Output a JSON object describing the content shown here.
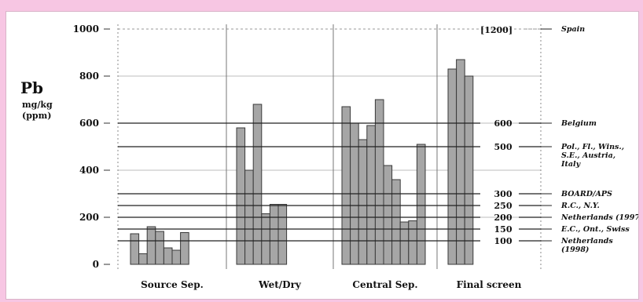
{
  "chart_data": {
    "type": "bar",
    "ylabel": "Pb",
    "yunit_line1": "mg/kg",
    "yunit_line2": "(ppm)",
    "ylim": [
      0,
      1000
    ],
    "yticks": [
      "0",
      "200",
      "400",
      "600",
      "800",
      "1000"
    ],
    "ceiling_note": "[1200]",
    "groups": [
      {
        "name": "Source Sep.",
        "values": [
          130,
          45,
          160,
          140,
          70,
          60,
          135
        ]
      },
      {
        "name": "Wet/Dry",
        "values": [
          580,
          400,
          680,
          215,
          255,
          255
        ]
      },
      {
        "name": "Central Sep.",
        "values": [
          670,
          600,
          530,
          590,
          700,
          420,
          360,
          180,
          185,
          510
        ]
      },
      {
        "name": "Final screen",
        "values": [
          830,
          870,
          800
        ]
      }
    ],
    "thresholds": [
      {
        "value": 600,
        "label": "600"
      },
      {
        "value": 500,
        "label": "500"
      },
      {
        "value": 300,
        "label": "300"
      },
      {
        "value": 250,
        "label": "250"
      },
      {
        "value": 200,
        "label": "200"
      },
      {
        "value": 150,
        "label": "150"
      },
      {
        "value": 100,
        "label": "100"
      }
    ],
    "standards": [
      {
        "value": 1000,
        "lines": [
          "Spain"
        ]
      },
      {
        "value": 600,
        "lines": [
          "Belgium"
        ]
      },
      {
        "value": 500,
        "lines": [
          "Pol., Fl., Wins.,",
          "S.E., Austria,",
          "Italy"
        ]
      },
      {
        "value": 300,
        "lines": [
          "BOARD/APS"
        ]
      },
      {
        "value": 250,
        "lines": [
          "R.C., N.Y."
        ]
      },
      {
        "value": 200,
        "lines": [
          "Netherlands (1997)"
        ]
      },
      {
        "value": 150,
        "lines": [
          "E.C., Ont., Swiss"
        ]
      },
      {
        "value": 100,
        "lines": [
          "Netherlands",
          "(1998)"
        ]
      }
    ],
    "colors": {
      "bar": "#a6a6a6",
      "bar_stroke": "#3a3a3a",
      "line": "#222222",
      "grid": "#999999"
    }
  }
}
